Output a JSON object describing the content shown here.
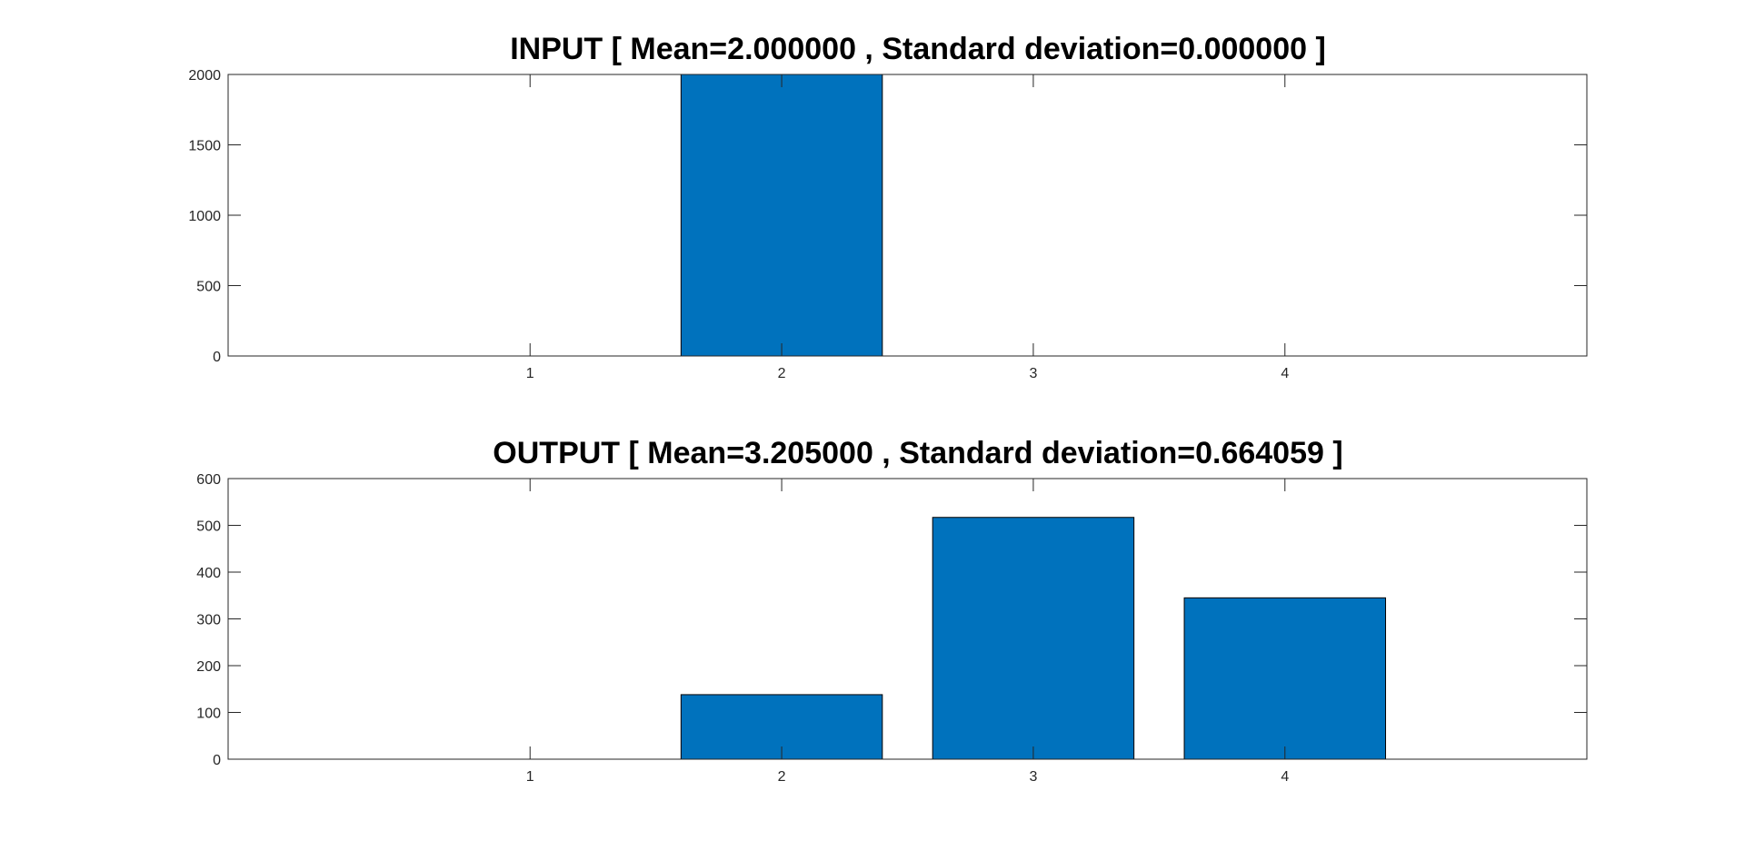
{
  "colors": {
    "bar": "#0072BD",
    "axis": "#262626",
    "background": "#ffffff"
  },
  "chart_data": [
    {
      "type": "bar",
      "title": "INPUT [ Mean=2.000000 , Standard deviation=0.000000 ]",
      "xlabel": "",
      "ylabel": "",
      "categories": [
        1,
        2,
        3,
        4
      ],
      "values": [
        0,
        2000,
        0,
        0
      ],
      "xlim": [
        -0.2,
        5.2
      ],
      "ylim": [
        0,
        2000
      ],
      "xticks": [
        1,
        2,
        3,
        4
      ],
      "yticks": [
        0,
        500,
        1000,
        1500,
        2000
      ],
      "bar_width": 0.8,
      "grid": false,
      "legend": "none"
    },
    {
      "type": "bar",
      "title": "OUTPUT [ Mean=3.205000 , Standard deviation=0.664059 ]",
      "xlabel": "",
      "ylabel": "",
      "categories": [
        1,
        2,
        3,
        4
      ],
      "values": [
        0,
        138,
        517,
        345
      ],
      "xlim": [
        -0.2,
        5.2
      ],
      "ylim": [
        0,
        600
      ],
      "xticks": [
        1,
        2,
        3,
        4
      ],
      "yticks": [
        0,
        100,
        200,
        300,
        400,
        500,
        600
      ],
      "bar_width": 0.8,
      "grid": false,
      "legend": "none"
    }
  ]
}
